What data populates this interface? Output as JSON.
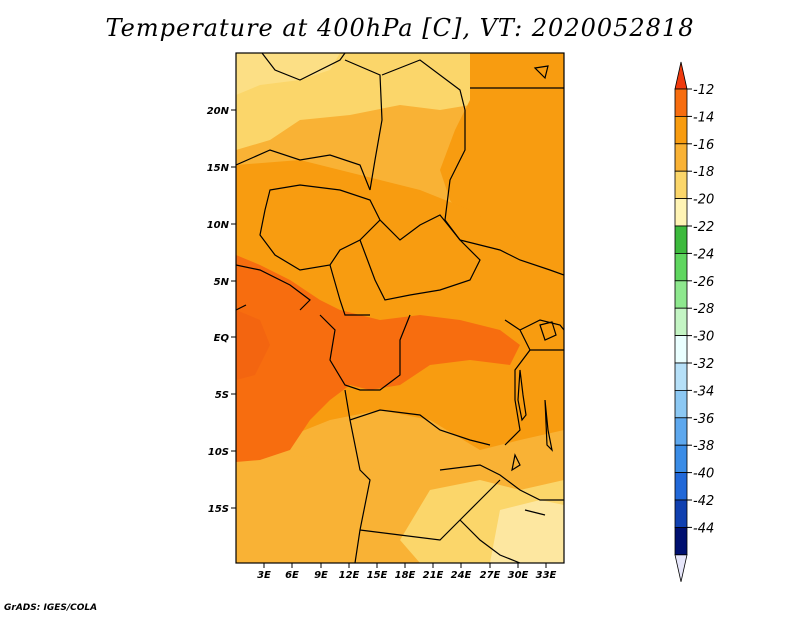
{
  "title": "Temperature at 400hPa [C], VT: 2020052818",
  "lat_labels": [
    "20N",
    "15N",
    "10N",
    "5N",
    "EQ",
    "5S",
    "10S",
    "15S"
  ],
  "lon_labels": [
    "3E",
    "6E",
    "9E",
    "12E",
    "15E",
    "18E",
    "21E",
    "24E",
    "27E",
    "30E",
    "33E"
  ],
  "colorbar": {
    "labels": [
      "-12",
      "-14",
      "-16",
      "-18",
      "-20",
      "-22",
      "-24",
      "-26",
      "-28",
      "-30",
      "-32",
      "-34",
      "-36",
      "-38",
      "-40",
      "-42",
      "-44"
    ],
    "colors": [
      "#f03a0e",
      "#f76d0f",
      "#f89c10",
      "#f9b235",
      "#fbd66a",
      "#fff4b5",
      "#3dba3d",
      "#5fd65f",
      "#8ee88e",
      "#c4f5c4",
      "#eaffff",
      "#b6e0f8",
      "#8cc8f3",
      "#5ea8ee",
      "#3a8ce6",
      "#2168d8",
      "#1040b0",
      "#001070",
      "#e6e6fa"
    ]
  },
  "colors": {
    "deep_orange": "#f76d0f",
    "orange": "#f89c10",
    "light_orange": "#f9b235",
    "yellow": "#fbd66a",
    "pale_yellow": "#fff4b5",
    "border": "#000000"
  },
  "footer": "GrADS: IGES/COLA"
}
